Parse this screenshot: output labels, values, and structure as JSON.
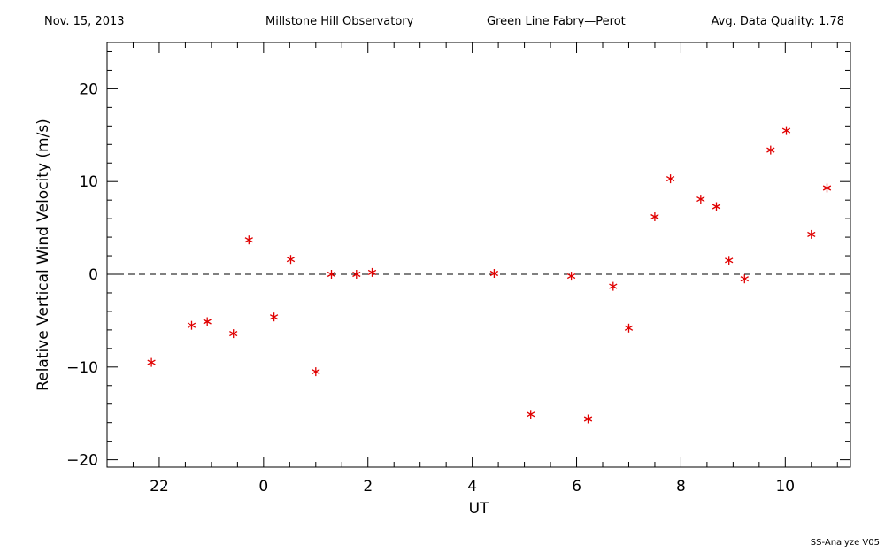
{
  "header": {
    "date": "Nov. 15, 2013",
    "observatory": "Millstone Hill Observatory",
    "instrument": "Green Line Fabry—Perot",
    "quality": "Avg. Data Quality: 1.78"
  },
  "footer": "SS-Analyze V05",
  "chart_data": {
    "type": "scatter",
    "xlabel": "UT",
    "ylabel": "Relative Vertical Wind Velocity (m/s)",
    "x_tick_labels": [
      "22",
      "0",
      "2",
      "4",
      "6",
      "8",
      "10"
    ],
    "y_tick_labels": [
      "−20",
      "−10",
      "0",
      "10",
      "20"
    ],
    "xlim": [
      21,
      35.25
    ],
    "ylim": [
      -20.8,
      25
    ],
    "zero_line": "dashed",
    "marker": "asterisk",
    "marker_color": "#e00000",
    "points": [
      {
        "x": 21.85,
        "y": -9.5
      },
      {
        "x": 22.62,
        "y": -5.5
      },
      {
        "x": 22.92,
        "y": -5.1
      },
      {
        "x": 23.42,
        "y": -6.4
      },
      {
        "x": 23.72,
        "y": 3.7
      },
      {
        "x": 24.2,
        "y": -4.6
      },
      {
        "x": 24.52,
        "y": 1.6
      },
      {
        "x": 25.0,
        "y": -10.5
      },
      {
        "x": 25.3,
        "y": 0.0
      },
      {
        "x": 25.78,
        "y": 0.0
      },
      {
        "x": 26.08,
        "y": 0.2
      },
      {
        "x": 28.42,
        "y": 0.1
      },
      {
        "x": 29.12,
        "y": -15.1
      },
      {
        "x": 29.9,
        "y": -0.2
      },
      {
        "x": 30.22,
        "y": -15.6
      },
      {
        "x": 30.7,
        "y": -1.3
      },
      {
        "x": 31.0,
        "y": -5.8
      },
      {
        "x": 31.5,
        "y": 6.2
      },
      {
        "x": 31.8,
        "y": 10.3
      },
      {
        "x": 32.38,
        "y": 8.1
      },
      {
        "x": 32.68,
        "y": 7.3
      },
      {
        "x": 32.92,
        "y": 1.5
      },
      {
        "x": 33.22,
        "y": -0.5
      },
      {
        "x": 33.72,
        "y": 13.4
      },
      {
        "x": 34.02,
        "y": 15.5
      },
      {
        "x": 34.5,
        "y": 4.3
      },
      {
        "x": 34.8,
        "y": 9.3
      }
    ]
  }
}
